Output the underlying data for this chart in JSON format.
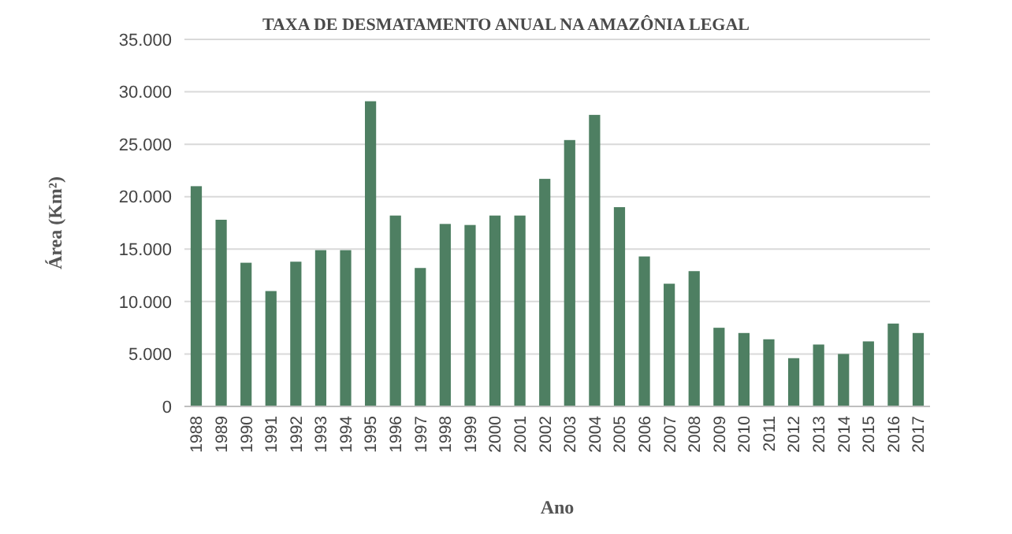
{
  "chart_data": {
    "type": "bar",
    "title": "TAXA DE DESMATAMENTO ANUAL NA AMAZÔNIA LEGAL",
    "xlabel": "Ano",
    "ylabel": "Área (Km²)",
    "categories": [
      "1988",
      "1989",
      "1990",
      "1991",
      "1992",
      "1993",
      "1994",
      "1995",
      "1996",
      "1997",
      "1998",
      "1999",
      "2000",
      "2001",
      "2002",
      "2003",
      "2004",
      "2005",
      "2006",
      "2007",
      "2008",
      "2009",
      "2010",
      "2011",
      "2012",
      "2013",
      "2014",
      "2015",
      "2016",
      "2017"
    ],
    "values": [
      21000,
      17800,
      13700,
      11000,
      13800,
      14900,
      14900,
      29100,
      18200,
      13200,
      17400,
      17300,
      18200,
      18200,
      21700,
      25400,
      27800,
      19000,
      14300,
      11700,
      12900,
      7500,
      7000,
      6400,
      4600,
      5900,
      5000,
      6200,
      7900,
      7000
    ],
    "color": "#4e7f62",
    "ylim": [
      0,
      35000
    ],
    "yticks": [
      {
        "value": 0,
        "label": "0"
      },
      {
        "value": 5000,
        "label": "5.000"
      },
      {
        "value": 10000,
        "label": "10.000"
      },
      {
        "value": 15000,
        "label": "15.000"
      },
      {
        "value": 20000,
        "label": "20.000"
      },
      {
        "value": 25000,
        "label": "25.000"
      },
      {
        "value": 30000,
        "label": "30.000"
      },
      {
        "value": 35000,
        "label": "35.000"
      }
    ],
    "grid": "y"
  }
}
